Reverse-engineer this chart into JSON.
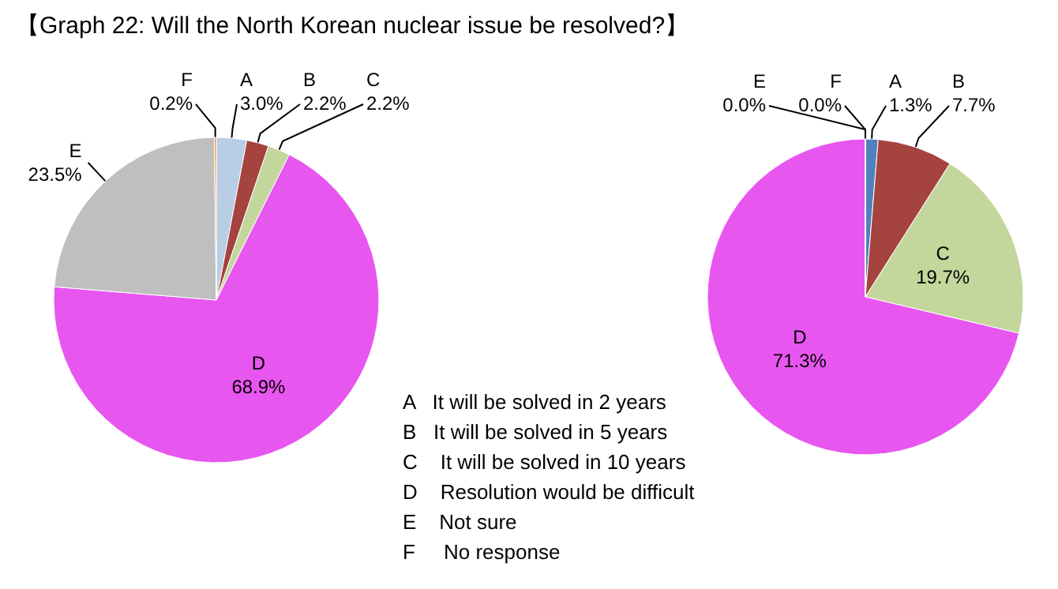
{
  "chart_data": [
    {
      "type": "pie",
      "title": "【Graph 22: Will the North Korean nuclear issue be resolved?】",
      "categories": [
        "A",
        "B",
        "C",
        "D",
        "E",
        "F"
      ],
      "values": [
        3.0,
        2.2,
        2.2,
        68.9,
        23.5,
        0.2
      ],
      "value_labels": [
        "3.0%",
        "2.2%",
        "2.2%",
        "68.9%",
        "23.5%",
        "0.2%"
      ],
      "colors": [
        "#b9cde5",
        "#a5433f",
        "#c3d69b",
        "#e856f0",
        "#bfbfbf",
        "#f79646"
      ],
      "annotations": [
        "A   It will be solved in 2 years",
        "B   It will be solved in 5 years",
        "C    It will be solved in 10 years",
        "D    Resolution would be difficult",
        "E    Not sure",
        "F     No response"
      ]
    },
    {
      "type": "pie",
      "categories": [
        "A",
        "B",
        "C",
        "D",
        "E",
        "F"
      ],
      "values": [
        1.3,
        7.7,
        19.7,
        71.3,
        0.0,
        0.0
      ],
      "value_labels": [
        "1.3%",
        "7.7%",
        "19.7%",
        "71.3%",
        "0.0%",
        "0.0%"
      ],
      "colors": [
        "#4f81bd",
        "#a5433f",
        "#c3d69b",
        "#e856f0",
        "#bfbfbf",
        "#f79646"
      ]
    }
  ]
}
